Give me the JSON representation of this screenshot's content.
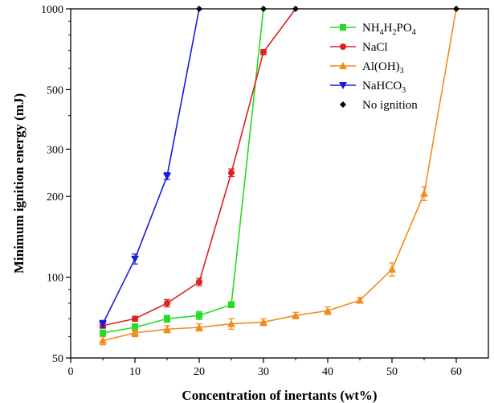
{
  "chart_data": {
    "type": "line",
    "xlabel": "Concentration of inertants (wt%)",
    "ylabel": "Minimum ignition energy (mJ)",
    "xlim": [
      0,
      65
    ],
    "ylim": [
      50,
      1000
    ],
    "yscale": "log",
    "xticks": [
      0,
      10,
      20,
      30,
      40,
      50,
      60
    ],
    "yticks": [
      50,
      100,
      200,
      300,
      500,
      1000
    ],
    "legend_position": "top-right",
    "series": [
      {
        "name": "NH4H2PO4",
        "label_parts": [
          [
            "NH",
            ""
          ],
          [
            "4",
            "sub"
          ],
          [
            "H",
            ""
          ],
          [
            "2",
            "sub"
          ],
          [
            "PO",
            ""
          ],
          [
            "4",
            "sub"
          ]
        ],
        "color": "#22dd22",
        "marker": "square",
        "x": [
          5,
          10,
          15,
          20,
          25,
          30
        ],
        "y": [
          62,
          65,
          70,
          72,
          79,
          1000
        ],
        "err": [
          1.5,
          2,
          2,
          2.5,
          2,
          0
        ]
      },
      {
        "name": "NaCl",
        "label_parts": [
          [
            "NaCl",
            ""
          ]
        ],
        "color": "#e02020",
        "marker": "circle",
        "x": [
          5,
          10,
          15,
          20,
          25,
          30,
          35
        ],
        "y": [
          66,
          70,
          80,
          96,
          245,
          690,
          1000
        ],
        "err": [
          1.5,
          1.5,
          2.5,
          3,
          8,
          15,
          0
        ]
      },
      {
        "name": "Al(OH)3",
        "label_parts": [
          [
            "Al(OH)",
            ""
          ],
          [
            "3",
            "sub"
          ]
        ],
        "color": "#f08c1c",
        "marker": "triangle-up",
        "x": [
          5,
          10,
          15,
          20,
          25,
          30,
          35,
          40,
          45,
          50,
          55,
          60
        ],
        "y": [
          58,
          62,
          64,
          65,
          67,
          68,
          72,
          75,
          82,
          107,
          205,
          1000
        ],
        "err": [
          2,
          2,
          2,
          2,
          3,
          2,
          2,
          2.5,
          2,
          6,
          12,
          0
        ]
      },
      {
        "name": "NaHCO3",
        "label_parts": [
          [
            "NaHCO",
            ""
          ],
          [
            "3",
            "sub"
          ]
        ],
        "color": "#1a1adf",
        "marker": "triangle-down",
        "x": [
          5,
          10,
          15,
          20
        ],
        "y": [
          67,
          117,
          238,
          1000
        ],
        "err": [
          2,
          5,
          7,
          0
        ]
      }
    ],
    "no_ignition": {
      "name": "No ignition",
      "color": "#000000",
      "marker": "diamond",
      "x": [
        20,
        30,
        35,
        60
      ],
      "y": [
        1000,
        1000,
        1000,
        1000
      ]
    }
  }
}
